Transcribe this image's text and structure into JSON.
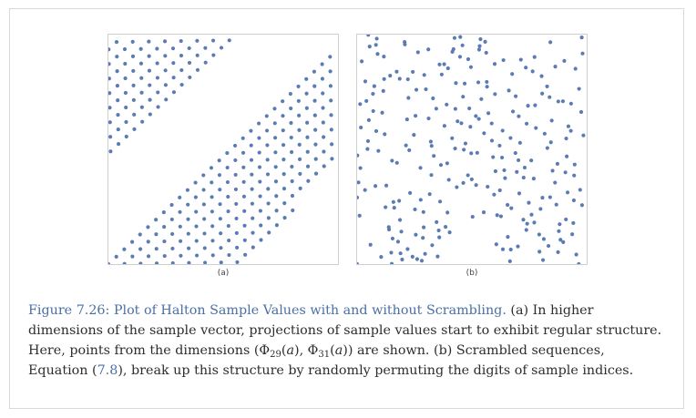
{
  "figure": {
    "subfig_a_label": "(a)",
    "subfig_b_label": "(b)",
    "dot_color": "#5b7bb4",
    "caption": {
      "figure_title": "Figure 7.26: Plot of Halton Sample Values with and without Scrambling.",
      "part1": " (a) In higher dimensions of the sample vector, projections of sample values start to exhibit regular structure. Here, points from the dimensions ",
      "math_open": "(",
      "phi": "Φ",
      "sub_a": "29",
      "arg_a": "a",
      "comma": ", ",
      "sub_b": "31",
      "arg_b": "a",
      "math_close": ")",
      "part2": " are shown. (b) Scrambled sequences, Equation (",
      "eq_ref": "7.8",
      "part3": "), break up this structure by randomly permuting the digits of sample indices."
    }
  }
}
